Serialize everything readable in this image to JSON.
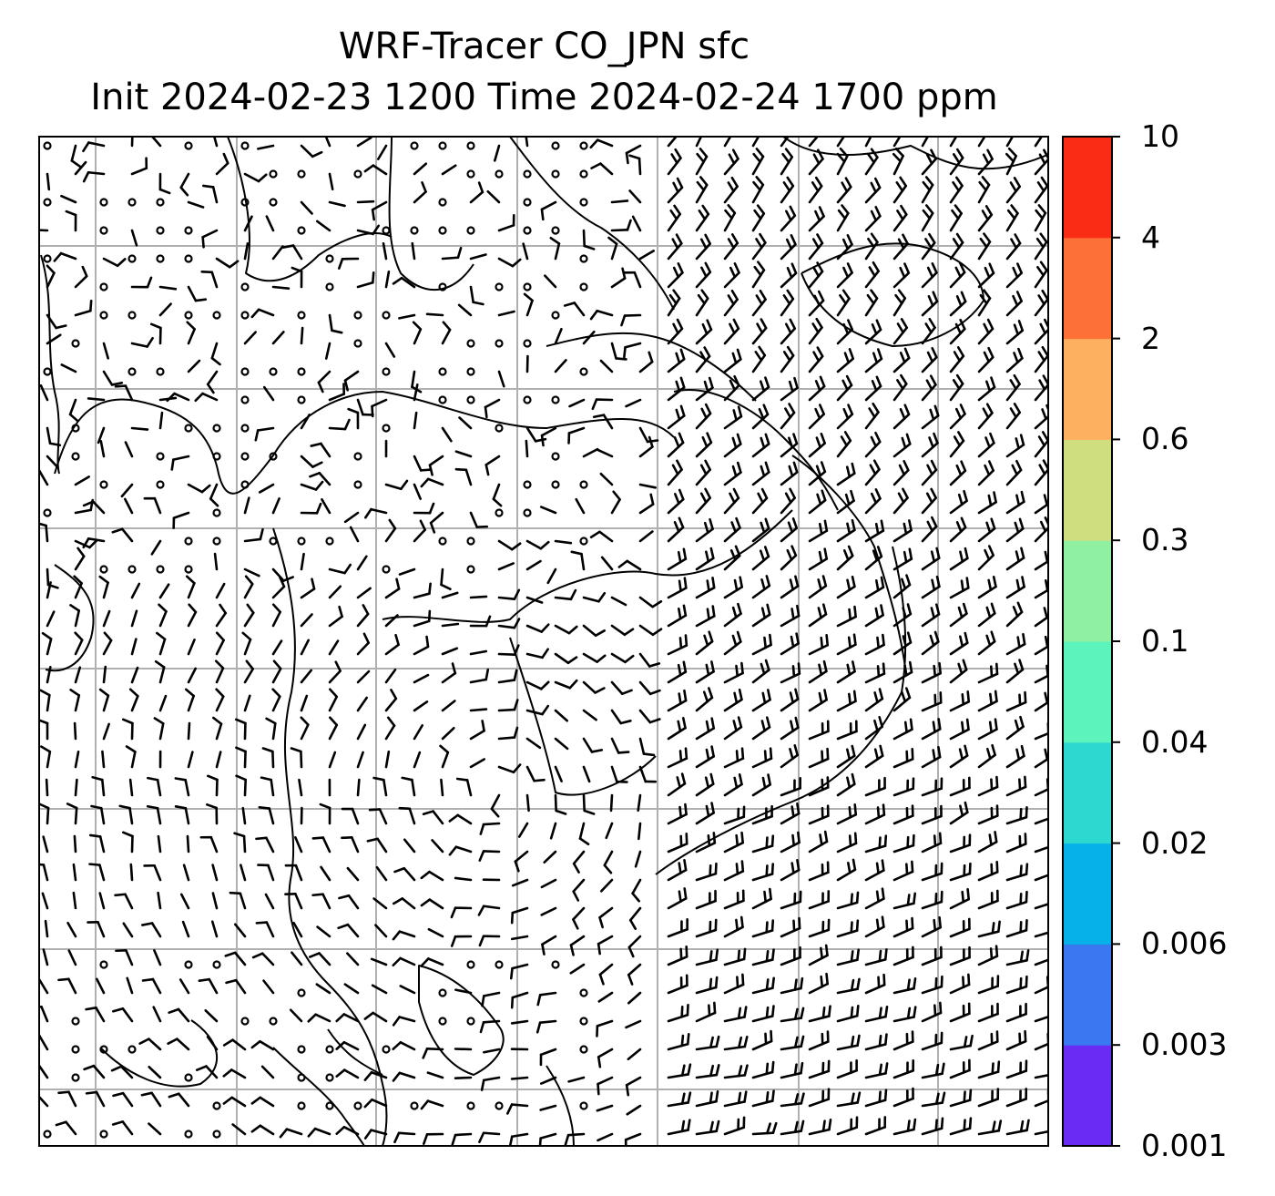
{
  "title": {
    "line1": "WRF-Tracer CO_JPN sfc",
    "line2": "Init 2024-02-23 1200 Time 2024-02-24 1700 ppm"
  },
  "colorbar": {
    "ticks": [
      "0.001",
      "0.003",
      "0.006",
      "0.02",
      "0.04",
      "0.1",
      "0.3",
      "0.6",
      "2",
      "4",
      "10"
    ],
    "colors": [
      "#6a2cf5",
      "#3a78f2",
      "#06b0e8",
      "#2dd8d0",
      "#5cf4bc",
      "#8ef0a0",
      "#cfdf80",
      "#fdb060",
      "#fd7038",
      "#fb2c16"
    ]
  },
  "map": {
    "grid": true,
    "grid_color": "#b0b0b0",
    "symbols": "wind barbs and calm circles over coastlines"
  }
}
